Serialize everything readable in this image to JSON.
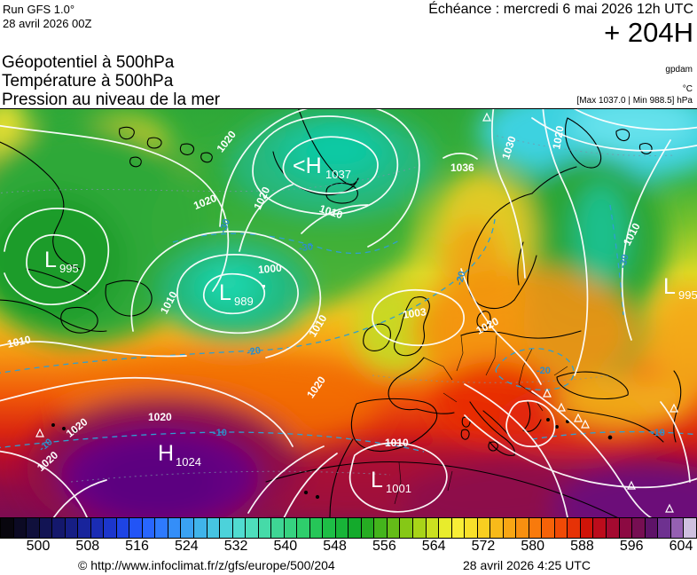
{
  "header": {
    "run_line1": "Run GFS 1.0°",
    "run_line2": "28 avril 2026 00Z",
    "echeance": "Échéance : mercredi 6 mai 2026 12h UTC",
    "forecast_hour": "+ 204H",
    "param1": "Géopotentiel à 500hPa",
    "param2": "Température à 500hPa",
    "param3": "Pression au niveau de la mer",
    "unit_geopotential": "gpdam",
    "unit_temperature": "°C",
    "minmax": "[Max 1037.0 | Min 988.5] hPa"
  },
  "map": {
    "iso": {
      "1037": "1037",
      "1036": "1036",
      "1030": "1030",
      "1024": "1024",
      "1020": "1020",
      "1010": "1010",
      "1003": "1003",
      "1001": "1001",
      "1000": "1000",
      "995": "995",
      "989": "989"
    },
    "temp": {
      "m10": "-10",
      "m20": "-20",
      "m30": "-30"
    },
    "centers": [
      {
        "sym": "<H",
        "value": "1037"
      },
      {
        "sym": "L",
        "value": "995"
      },
      {
        "sym": "L",
        "value": "989"
      },
      {
        "sym": "H",
        "value": "1024"
      },
      {
        "sym": "L",
        "value": "1001"
      },
      {
        "sym": "L",
        "value": "995"
      }
    ]
  },
  "colorbar": {
    "ticks": [
      "500",
      "508",
      "516",
      "524",
      "532",
      "540",
      "548",
      "556",
      "564",
      "572",
      "580",
      "588",
      "596",
      "604"
    ],
    "colors": [
      "#08060e",
      "#0c0a24",
      "#10103c",
      "#121454",
      "#14186c",
      "#161e84",
      "#18249c",
      "#1a2cb4",
      "#1c36cc",
      "#1e44e4",
      "#2254f6",
      "#2866fe",
      "#2e7afe",
      "#348ef8",
      "#3aa2f2",
      "#40b4ea",
      "#46c4e2",
      "#4cd2da",
      "#50dcd0",
      "#4edebc",
      "#46daa8",
      "#3ed694",
      "#36d280",
      "#2ece6c",
      "#26c658",
      "#1ebe46",
      "#18b438",
      "#14aa2c",
      "#26ac22",
      "#44b41c",
      "#64bc18",
      "#86c816",
      "#a8d418",
      "#cae020",
      "#e8ec2c",
      "#f8ee36",
      "#f8e02a",
      "#f8ce20",
      "#f8ba1a",
      "#f8a614",
      "#f89010",
      "#f87a0c",
      "#f66208",
      "#f04a06",
      "#e63206",
      "#d01408",
      "#bc0c1c",
      "#a40a30",
      "#8c0a42",
      "#760e52",
      "#5e1368",
      "#6e3190",
      "#9560b2",
      "#cfc0e0"
    ]
  },
  "footer": {
    "copyright": "© http://www.infoclimat.fr/z/gfs/europe/500/204",
    "generated": "28 avril 2026  4:25 UTC"
  }
}
